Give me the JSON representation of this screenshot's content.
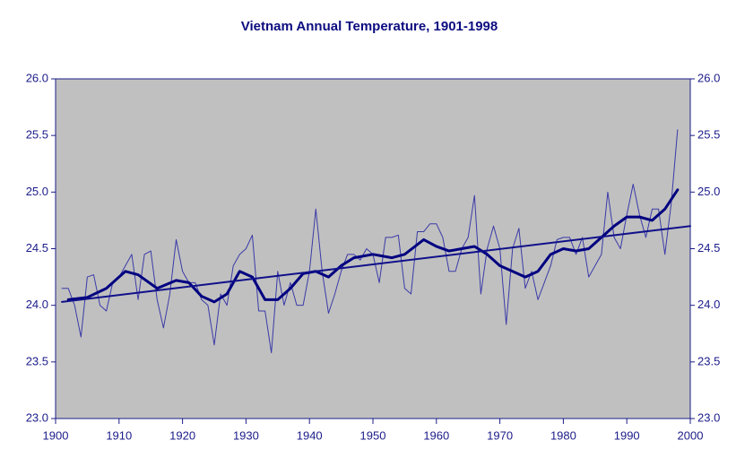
{
  "chart_data": {
    "type": "line",
    "title": "Vietnam Annual Temperature, 1901-1998",
    "series": [
      {
        "color": "#3a3aa8",
        "width": 1,
        "x": [
          1901,
          1902,
          1903,
          1904,
          1905,
          1906,
          1907,
          1908,
          1909,
          1910,
          1911,
          1912,
          1913,
          1914,
          1915,
          1916,
          1917,
          1918,
          1919,
          1920,
          1921,
          1922,
          1923,
          1924,
          1925,
          1926,
          1927,
          1928,
          1929,
          1930,
          1931,
          1932,
          1933,
          1934,
          1935,
          1936,
          1937,
          1938,
          1939,
          1940,
          1941,
          1942,
          1943,
          1944,
          1945,
          1946,
          1947,
          1948,
          1949,
          1950,
          1951,
          1952,
          1953,
          1954,
          1955,
          1956,
          1957,
          1958,
          1959,
          1960,
          1961,
          1962,
          1963,
          1964,
          1965,
          1966,
          1967,
          1968,
          1969,
          1970,
          1971,
          1972,
          1973,
          1974,
          1975,
          1976,
          1977,
          1978,
          1979,
          1980,
          1981,
          1982,
          1983,
          1984,
          1985,
          1986,
          1987,
          1988,
          1989,
          1990,
          1991,
          1992,
          1993,
          1994,
          1995,
          1996,
          1997,
          1998
        ],
        "values": [
          24.15,
          24.15,
          24.0,
          23.72,
          24.25,
          24.27,
          24.0,
          23.95,
          24.2,
          24.25,
          24.35,
          24.45,
          24.05,
          24.45,
          24.48,
          24.05,
          23.8,
          24.1,
          24.58,
          24.3,
          24.2,
          24.2,
          24.05,
          24.0,
          23.65,
          24.1,
          24.0,
          24.35,
          24.45,
          24.5,
          24.62,
          23.95,
          23.95,
          23.58,
          24.3,
          24.0,
          24.2,
          24.0,
          24.0,
          24.3,
          24.85,
          24.3,
          23.93,
          24.1,
          24.3,
          24.45,
          24.45,
          24.4,
          24.5,
          24.45,
          24.2,
          24.6,
          24.6,
          24.62,
          24.15,
          24.1,
          24.65,
          24.65,
          24.72,
          24.72,
          24.6,
          24.3,
          24.3,
          24.5,
          24.6,
          24.97,
          24.1,
          24.5,
          24.7,
          24.5,
          23.83,
          24.5,
          24.68,
          24.15,
          24.3,
          24.05,
          24.2,
          24.35,
          24.58,
          24.6,
          24.6,
          24.45,
          24.6,
          24.25,
          24.35,
          24.45,
          25.0,
          24.6,
          24.5,
          24.8,
          25.07,
          24.8,
          24.6,
          24.85,
          24.85,
          24.45,
          24.9,
          25.55
        ]
      },
      {
        "color": "#000080",
        "width": 3,
        "x": [
          1902,
          1905,
          1908,
          1911,
          1913,
          1916,
          1919,
          1921,
          1923,
          1925,
          1927,
          1929,
          1931,
          1933,
          1935,
          1937,
          1939,
          1941,
          1943,
          1945,
          1947,
          1950,
          1953,
          1955,
          1958,
          1960,
          1962,
          1964,
          1966,
          1968,
          1970,
          1972,
          1974,
          1976,
          1978,
          1980,
          1982,
          1984,
          1986,
          1988,
          1990,
          1992,
          1994,
          1996,
          1998
        ],
        "values": [
          24.05,
          24.07,
          24.15,
          24.3,
          24.27,
          24.15,
          24.22,
          24.2,
          24.08,
          24.03,
          24.1,
          24.3,
          24.25,
          24.05,
          24.05,
          24.15,
          24.28,
          24.3,
          24.25,
          24.35,
          24.42,
          24.45,
          24.42,
          24.45,
          24.58,
          24.52,
          24.48,
          24.5,
          24.52,
          24.45,
          24.35,
          24.3,
          24.25,
          24.3,
          24.45,
          24.5,
          24.48,
          24.5,
          24.6,
          24.7,
          24.78,
          24.78,
          24.75,
          24.85,
          25.02
        ]
      },
      {
        "color": "#10108a",
        "width": 2,
        "x": [
          1901,
          2000
        ],
        "values": [
          24.03,
          24.7
        ]
      }
    ],
    "xlim": [
      1900,
      2000
    ],
    "xticks": [
      1900,
      1910,
      1920,
      1930,
      1940,
      1950,
      1960,
      1970,
      1980,
      1990,
      2000
    ],
    "ylim": [
      23,
      26
    ],
    "yticks": [
      {
        "value": 23,
        "label": "23.0"
      },
      {
        "value": 23.5,
        "label": "23.5"
      },
      {
        "value": 24,
        "label": "24.0"
      },
      {
        "value": 24.5,
        "label": "24.5"
      },
      {
        "value": 25,
        "label": "25.0"
      },
      {
        "value": 25.5,
        "label": "25.5"
      },
      {
        "value": 26,
        "label": "26.0"
      }
    ],
    "y2lim": [
      23,
      26
    ],
    "y2ticks": [
      {
        "value": 23,
        "label": "23.0"
      },
      {
        "value": 23.5,
        "label": "23.5"
      },
      {
        "value": 24,
        "label": "24.0"
      },
      {
        "value": 24.5,
        "label": "24.5"
      },
      {
        "value": 25,
        "label": "25.0"
      },
      {
        "value": 25.5,
        "label": "25.5"
      },
      {
        "value": 26,
        "label": "26.0"
      }
    ],
    "plot_background": "#c0c0c0",
    "grid": false
  }
}
